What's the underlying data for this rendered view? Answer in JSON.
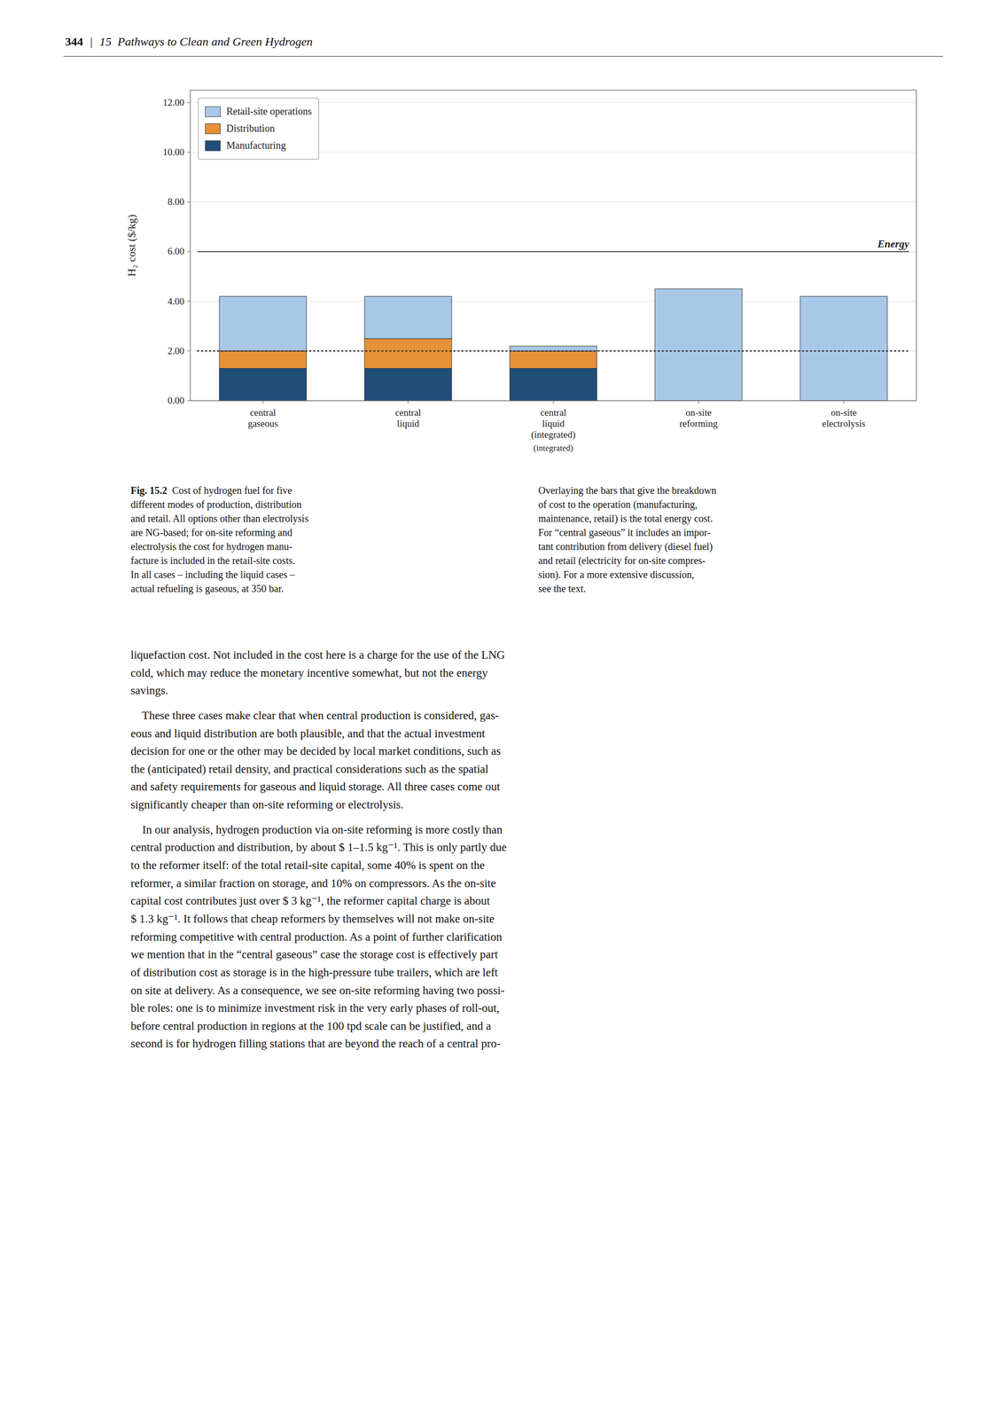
{
  "page": {
    "page_number": "344",
    "header_separator": "|",
    "chapter_header": "15  Pathways to Clean and Green Hydrogen",
    "caption_label": "Fig. 15.2",
    "caption_left": "  Cost of hydrogen fuel for five\ndifferent modes of production, distribution\nand retail. All options other than electrolysis\nare NG-based; for on-site reforming and\nelectrolysis the cost for hydrogen manu-\nfacture is included in the retail-site costs.\nIn all cases – including the liquid cases –\nactual refueling is gaseous, at 350 bar.",
    "caption_right": "Overlaying the bars that give the breakdown\nof cost to the operation (manufacturing,\nmaintenance, retail) is the total energy cost.\nFor “central gaseous” it includes an impor-\ntant contribution from delivery (diesel fuel)\nand retail (electricity for on-site compres-\nsion). For a more extensive discussion,\nsee the text.",
    "body": [
      "liquefaction cost. Not included in the cost here is a charge for the use of the LNG",
      "cold, which may reduce the monetary incentive somewhat, but not the energy",
      "savings.",
      "    These three cases make clear that when central production is considered, gas-\neous and liquid distribution are both plausible, and that the actual investment\ndecision for one or the other may be decided by local market conditions, such as\nthe (anticipated) retail density, and practical considerations such as the spatial\nand safety requirements for gaseous and liquid storage. All three cases come out\nsignificantly cheaper than on-site reforming or electrolysis.",
      "    In our analysis, hydrogen production via on-site reforming is more costly than\ncentral production and distribution, by about $ 1–1.5 kg⁻¹. This is only partly due\nto the reformer itself: of the total retail-site capital, some 40% is spent on the\nreformer, a similar fraction on storage, and 10% on compressors. As the on-site\ncapital cost contributes just over $ 3 kg⁻¹, the reformer capital charge is about\n$ 1.3 kg⁻¹. It follows that cheap reformers by themselves will not make on-site\nreforming competitive with central production. As a point of further clarification\nwe mention that in the “central gaseous” case the storage cost is effectively part\nof distribution cost as storage is in the high-pressure tube trailers, which are left\non site at delivery. As a consequence, we see on-site reforming having two possi-\nble roles: one is to minimize investment risk in the very early phases of roll-out,\nbefore central production in regions at the 100 tpd scale can be justified, and a\nsecond is for hydrogen filling stations that are beyond the reach of a central pro-"
    ]
  },
  "chart_data": {
    "type": "bar",
    "stacked": true,
    "categories": [
      "central\ngaseous",
      "central\nliquid",
      "central\nliquid\n(integrated)",
      "on-site\nreforming",
      "on-site\nelectrolysis"
    ],
    "series": [
      {
        "name": "Manufacturing",
        "color": "#1f4e79",
        "values": [
          1.3,
          1.3,
          1.3,
          0.0,
          0.0
        ]
      },
      {
        "name": "Distribution",
        "color": "#e69138",
        "values": [
          0.7,
          1.2,
          0.7,
          0.0,
          0.0
        ]
      },
      {
        "name": "Retail-site operations",
        "color": "#a9c8e8",
        "values": [
          2.2,
          1.7,
          0.2,
          4.5,
          4.2
        ]
      }
    ],
    "y_label": "H₂ cost ($/kg)",
    "ylim": [
      0,
      12.5
    ],
    "yticks": [
      {
        "value": 0.0,
        "label": "0.00"
      },
      {
        "value": 2.0,
        "label": "2.00"
      },
      {
        "value": 4.0,
        "label": "4.00"
      },
      {
        "value": 6.0,
        "label": "6.00"
      },
      {
        "value": 8.0,
        "label": "8.00"
      },
      {
        "value": 10.0,
        "label": "10.00"
      },
      {
        "value": 12.0,
        "label": "12.00"
      }
    ],
    "grid": true,
    "legend": "upper left",
    "reference_lines": [
      {
        "y": 2.0,
        "line_style": "dotted"
      },
      {
        "y": 6.0,
        "line_style": "solid",
        "label": "Energy"
      }
    ],
    "annotations": [
      {
        "text": "(integrated)",
        "category": "central\nliquid\n(integrated)"
      }
    ]
  }
}
